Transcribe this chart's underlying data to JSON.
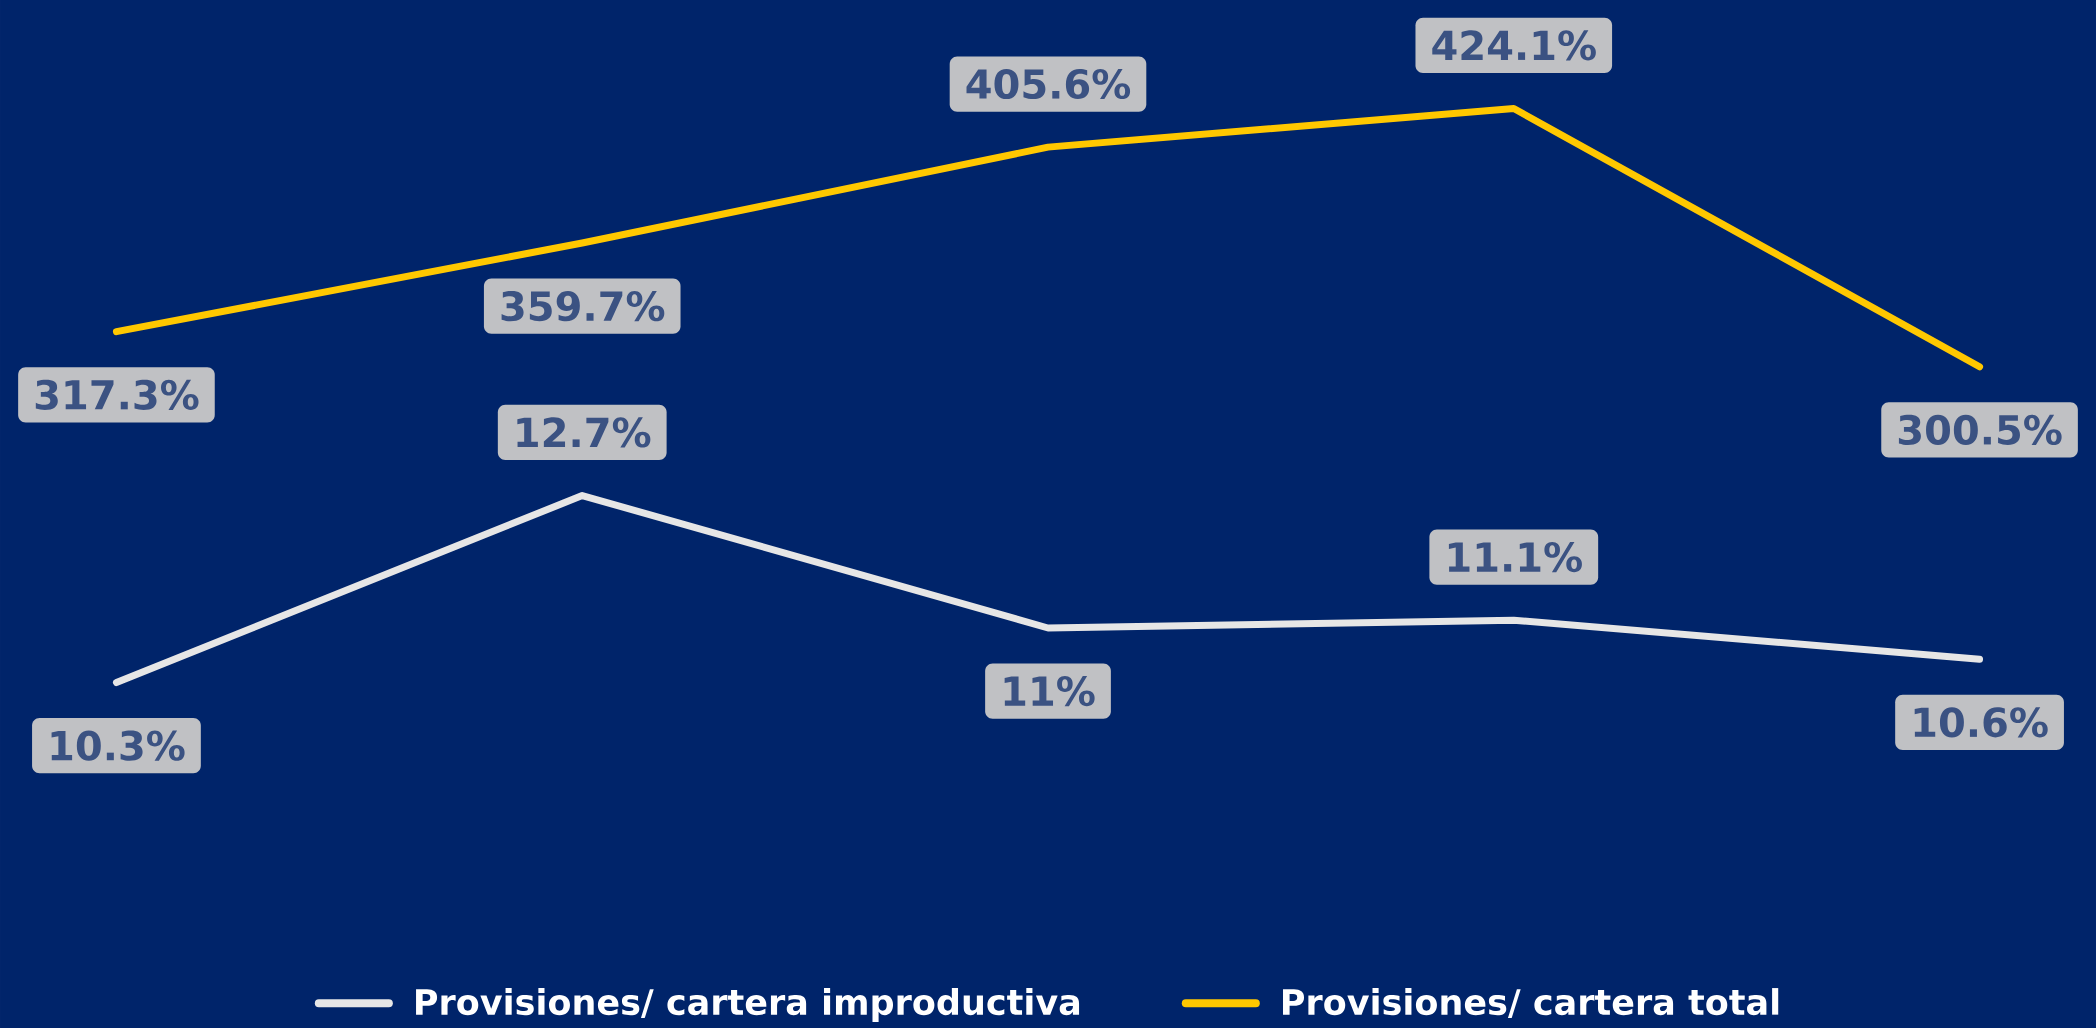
{
  "chart_data": [
    {
      "type": "line",
      "categories": [
        null,
        null,
        null,
        null,
        null
      ],
      "tick_labels": false,
      "legend": "bottom",
      "series": [
        {
          "name": "Provisiones/ cartera improductiva",
          "color": "#e6e6e6",
          "values": [
            10.3,
            12.7,
            11,
            11.1,
            10.6
          ],
          "value_labels": [
            "10.3%",
            "12.7%",
            "11%",
            "11.1%",
            "10.6%"
          ]
        }
      ]
    },
    {
      "type": "line",
      "categories": [
        null,
        null,
        null,
        null,
        null
      ],
      "tick_labels": false,
      "legend": "bottom",
      "series": [
        {
          "name": "Provisiones/ cartera total",
          "color": "#ffc800",
          "values": [
            317.3,
            359.7,
            405.6,
            424.1,
            300.5
          ],
          "value_labels": [
            "317.3%",
            "359.7%",
            "405.6%",
            "424.1%",
            "300.5%"
          ]
        }
      ]
    }
  ]
}
